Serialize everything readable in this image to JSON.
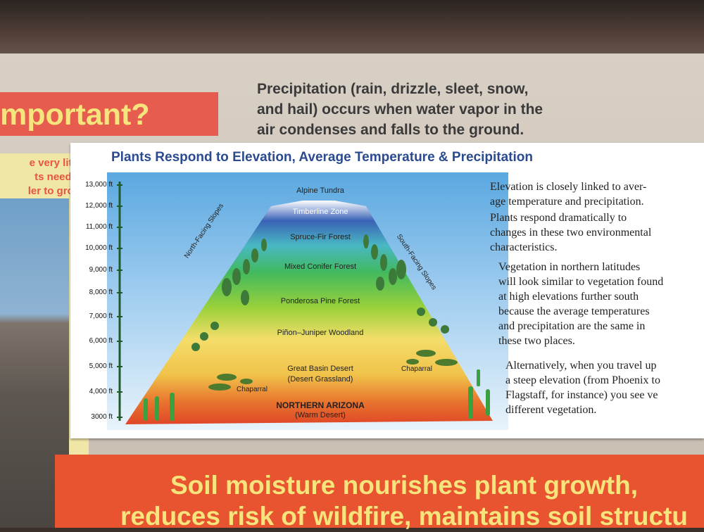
{
  "heading_fragment": "mportant?",
  "left_card": {
    "lines": [
      "e very little",
      "ts need to",
      "ler to grow."
    ]
  },
  "precipitation_note": {
    "lines": [
      "Precipitation (rain, drizzle, sleet, snow,",
      "and hail) occurs when water vapor in the",
      "air condenses and falls to the ground."
    ]
  },
  "panel": {
    "title": "Plants Respond to Elevation, Average Temperature & Precipitation",
    "elevations": [
      "13,000 ft",
      "12,000 ft",
      "11,000 ft",
      "10,000 ft",
      "9,000 ft",
      "8,000 ft",
      "7,000 ft",
      "6,000 ft",
      "5,000 ft",
      "4,000 ft",
      "3000 ft"
    ],
    "zones": {
      "alpine": "Alpine Tundra",
      "timberline": "Timberline Zone",
      "spruce_fir": "Spruce-Fir Forest",
      "mixed_conifer": "Mixed Conifer Forest",
      "ponderosa": "Ponderosa Pine Forest",
      "pinon_juniper": "Piñon–Juniper Woodland",
      "great_basin": "Great Basin Desert",
      "great_basin_sub": "(Desert Grassland)",
      "chaparral_left": "Chaparral",
      "chaparral_right": "Chaparral",
      "base": "NORTHERN ARIZONA",
      "base_sub": "(Warm Desert)"
    },
    "slopes": {
      "north": "North-Facing Slopes",
      "south": "South-Facing Slopes"
    },
    "paragraphs": [
      {
        "lines": [
          "Elevation is closely linked to aver-",
          "age temperature and precipitation."
        ]
      },
      {
        "lines": [
          "Plants respond dramatically to",
          "changes in these two environmental",
          "characteristics."
        ]
      },
      {
        "lines": [
          "Vegetation in northern latitudes",
          "will look similar to vegetation found",
          "at high elevations further south",
          "because the average temperatures",
          "and precipitation are the same in",
          "these two places."
        ]
      },
      {
        "lines": [
          "Alternatively, when you travel up",
          "a steep elevation (from Phoenix to",
          "Flagstaff, for instance) you see ve",
          "different vegetation."
        ]
      }
    ]
  },
  "banner": {
    "lines": [
      "Soil moisture nourishes plant growth,",
      "reduces risk of wildfire, maintains soil structu"
    ]
  },
  "colors": {
    "heading_bg": "#e65c4e",
    "heading_text": "#f6e57c",
    "title_blue": "#2a4b8f",
    "banner_bg": "#e8542f"
  }
}
